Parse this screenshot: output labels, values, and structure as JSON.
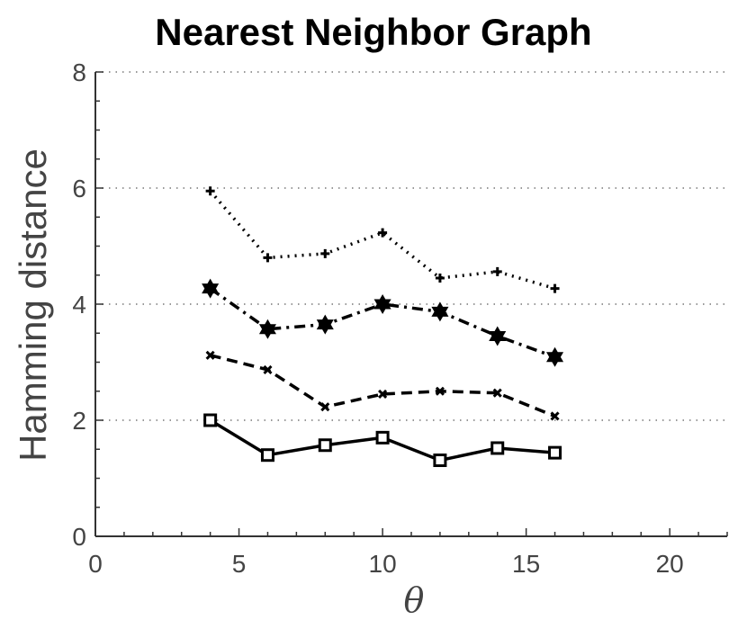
{
  "chart_data": {
    "type": "line",
    "title": "Nearest Neighbor Graph",
    "xlabel": "θ",
    "ylabel": "Hamming distance",
    "xlim": [
      0,
      22
    ],
    "ylim": [
      0,
      8
    ],
    "xticks": [
      0,
      5,
      10,
      15,
      20
    ],
    "yticks": [
      0,
      2,
      4,
      6,
      8
    ],
    "grid": "horizontal dotted at 2, 4, 6, 8",
    "legend": "none",
    "x": [
      4,
      6,
      8,
      10,
      12,
      14,
      16
    ],
    "series": [
      {
        "values": [
          5.95,
          4.8,
          4.87,
          5.23,
          4.45,
          4.56,
          4.27
        ],
        "line_style": "dotted",
        "marker": "plus"
      },
      {
        "values": [
          4.27,
          3.57,
          3.65,
          4.0,
          3.87,
          3.45,
          3.09
        ],
        "line_style": "dash-dot",
        "marker": "hexagram"
      },
      {
        "values": [
          3.12,
          2.87,
          2.23,
          2.45,
          2.5,
          2.47,
          2.07
        ],
        "line_style": "dashed",
        "marker": "x"
      },
      {
        "values": [
          2.0,
          1.4,
          1.57,
          1.7,
          1.31,
          1.52,
          1.44
        ],
        "line_style": "solid",
        "marker": "square"
      }
    ]
  }
}
